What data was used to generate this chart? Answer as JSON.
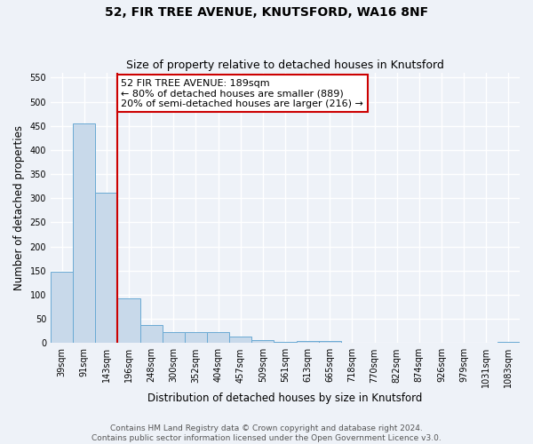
{
  "title_line1": "52, FIR TREE AVENUE, KNUTSFORD, WA16 8NF",
  "title_line2": "Size of property relative to detached houses in Knutsford",
  "xlabel": "Distribution of detached houses by size in Knutsford",
  "ylabel": "Number of detached properties",
  "bar_labels": [
    "39sqm",
    "91sqm",
    "143sqm",
    "196sqm",
    "248sqm",
    "300sqm",
    "352sqm",
    "404sqm",
    "457sqm",
    "509sqm",
    "561sqm",
    "613sqm",
    "665sqm",
    "718sqm",
    "770sqm",
    "822sqm",
    "874sqm",
    "926sqm",
    "979sqm",
    "1031sqm",
    "1083sqm"
  ],
  "bar_values": [
    148,
    455,
    311,
    93,
    38,
    22,
    22,
    22,
    13,
    7,
    2,
    5,
    4,
    1,
    0,
    1,
    0,
    0,
    0,
    0,
    3
  ],
  "bar_color": "#c8d9ea",
  "bar_edge_color": "#6aaad4",
  "vline_x_idx": 3,
  "vline_color": "#cc0000",
  "annotation_text": "52 FIR TREE AVENUE: 189sqm\n← 80% of detached houses are smaller (889)\n20% of semi-detached houses are larger (216) →",
  "annotation_box_color": "white",
  "annotation_box_edge_color": "#cc0000",
  "ylim": [
    0,
    560
  ],
  "yticks": [
    0,
    50,
    100,
    150,
    200,
    250,
    300,
    350,
    400,
    450,
    500,
    550
  ],
  "footer_line1": "Contains HM Land Registry data © Crown copyright and database right 2024.",
  "footer_line2": "Contains public sector information licensed under the Open Government Licence v3.0.",
  "bg_color": "#eef2f8",
  "grid_color": "#ffffff",
  "title_fontsize": 10,
  "subtitle_fontsize": 9,
  "axis_label_fontsize": 8.5,
  "tick_fontsize": 7,
  "annotation_fontsize": 8,
  "footer_fontsize": 6.5
}
